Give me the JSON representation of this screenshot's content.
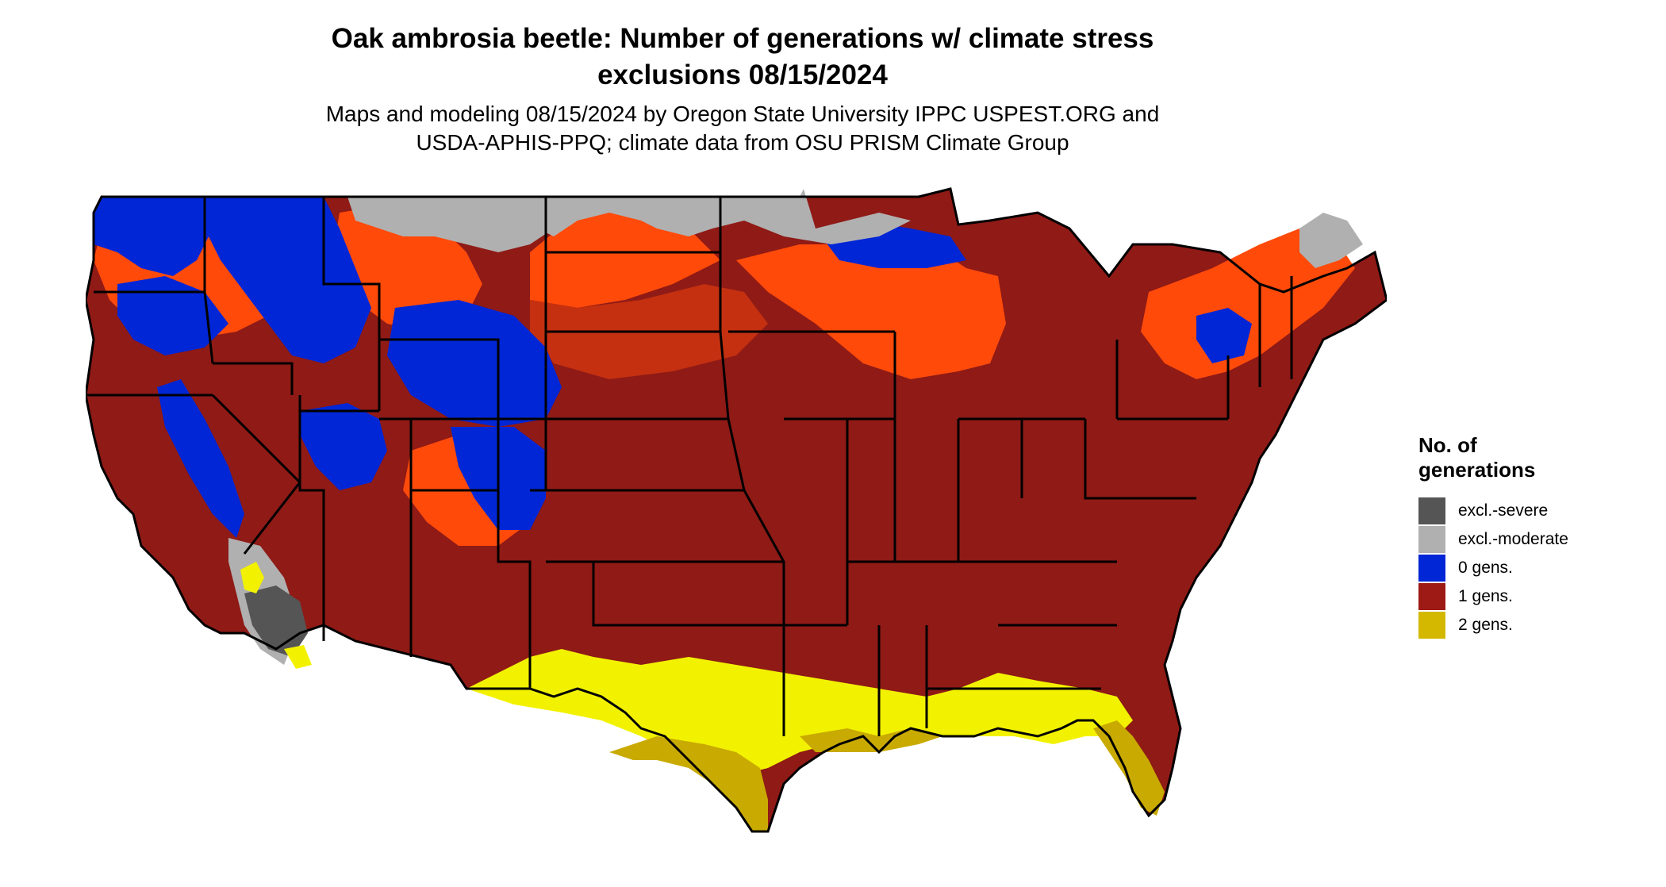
{
  "title_line1": "Oak ambrosia beetle: Number of generations w/ climate stress",
  "title_line2": "exclusions 08/15/2024",
  "subtitle_line1": "Maps and modeling 08/15/2024 by Oregon State University IPPC USPEST.ORG and",
  "subtitle_line2": "USDA-APHIS-PPQ; climate data from OSU PRISM Climate Group",
  "legend": {
    "title_line1": "No. of",
    "title_line2": "generations",
    "items": [
      {
        "label": "excl.-severe",
        "color": "#555555"
      },
      {
        "label": "excl.-moderate",
        "color": "#b0b0b0"
      },
      {
        "label": "0 gens.",
        "color": "#0026d6"
      },
      {
        "label": "1 gens.",
        "color": "#9e1a14"
      },
      {
        "label": "2 gens.",
        "color": "#d4b800"
      }
    ]
  },
  "colors": {
    "severe": "#555555",
    "moderate": "#b0b0b0",
    "zero": "#0026d6",
    "one": "#8f1a16",
    "one_light": "#ff4a0a",
    "one_mid": "#c43010",
    "two": "#c9aa00",
    "two_light": "#f2f200",
    "border": "#000000"
  }
}
